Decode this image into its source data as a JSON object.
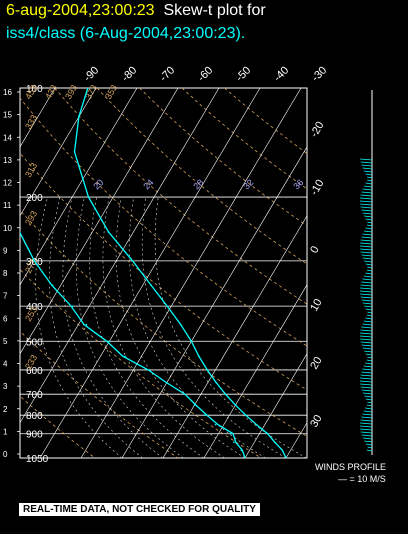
{
  "header": {
    "title_part1": "6-aug-2004,23:00:23",
    "title_part2": "Skew-t plot for",
    "subtitle": "iss4/class (6-Aug-2004,23:00:23)."
  },
  "chart_data": {
    "type": "line",
    "subtype": "skew-t",
    "pressure_labels": [
      "100",
      "200",
      "300",
      "400",
      "500",
      "600",
      "700",
      "800",
      "900",
      "1050"
    ],
    "pressure_levels": [
      100,
      200,
      300,
      400,
      500,
      600,
      700,
      800,
      900,
      1050
    ],
    "height_ticks_km": [
      "16",
      "15",
      "14",
      "13",
      "12",
      "11",
      "10",
      "9",
      "8",
      "7",
      "6",
      "5",
      "4",
      "3",
      "2",
      "1",
      "0"
    ],
    "temperature_ticks_top": [
      "-90",
      "-80",
      "-70",
      "-60",
      "-50",
      "-40",
      "-30"
    ],
    "temperature_ticks_right": [
      "-20",
      "-10",
      "0",
      "10",
      "20",
      "30"
    ],
    "mixing_ratio_labels": [
      "20",
      "24",
      "28",
      "32",
      "36"
    ],
    "dry_adiabat_labels": [
      "453",
      "433",
      "393",
      "373",
      "353",
      "333",
      "313",
      "293",
      "273",
      "253",
      "233"
    ],
    "axis_ranges": {
      "pressure_hpa": [
        100,
        1050
      ],
      "height_km": [
        0,
        16
      ]
    },
    "series": [
      {
        "name": "",
        "values": [
          [
            1050,
            30
          ],
          [
            1000,
            28
          ],
          [
            950,
            25
          ],
          [
            900,
            22
          ],
          [
            850,
            18
          ],
          [
            800,
            14
          ],
          [
            750,
            10
          ],
          [
            700,
            6
          ],
          [
            650,
            2
          ],
          [
            600,
            -2
          ],
          [
            550,
            -6
          ],
          [
            500,
            -10
          ],
          [
            450,
            -15
          ],
          [
            400,
            -21
          ],
          [
            350,
            -28
          ],
          [
            300,
            -36
          ],
          [
            250,
            -46
          ],
          [
            200,
            -56
          ],
          [
            150,
            -66
          ],
          [
            120,
            -70
          ],
          [
            100,
            -72
          ]
        ]
      },
      {
        "name": "",
        "values": [
          [
            1050,
            20
          ],
          [
            1000,
            18
          ],
          [
            950,
            15
          ],
          [
            900,
            13
          ],
          [
            850,
            8
          ],
          [
            800,
            4
          ],
          [
            750,
            0
          ],
          [
            700,
            -4
          ],
          [
            650,
            -10
          ],
          [
            600,
            -16
          ],
          [
            550,
            -24
          ],
          [
            500,
            -30
          ],
          [
            450,
            -38
          ],
          [
            400,
            -44
          ],
          [
            350,
            -52
          ],
          [
            300,
            -60
          ],
          [
            250,
            -68
          ],
          [
            200,
            -76
          ],
          [
            150,
            -84
          ],
          [
            120,
            -88
          ],
          [
            100,
            -90
          ]
        ]
      }
    ],
    "winds_label": "WINDS PROFILE",
    "winds_scale": "— = 10 M/S",
    "colors": {
      "temperature": "#00ffff",
      "dewpoint": "#00ffff",
      "adiabats": "#d2a05a",
      "grid": "#ffffff"
    }
  },
  "footer": {
    "disclaimer": "REAL-TIME DATA, NOT CHECKED FOR QUALITY"
  }
}
